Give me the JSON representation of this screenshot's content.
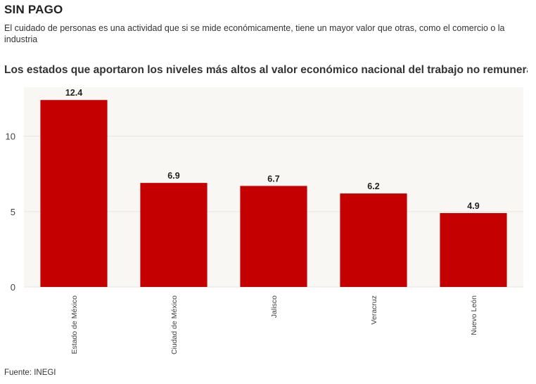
{
  "header": {
    "title": "SIN PAGO",
    "subtitle": "El cuidado de personas es una actividad que si se mide económicamente, tiene un mayor valor que otras, como el comercio o la industria"
  },
  "chart_heading": "Los estados que aportaron los niveles más altos al valor económico nacional del trabajo no remunerado",
  "footer": {
    "source": "Fuente: INEGI"
  },
  "colors": {
    "bar": "#c40000",
    "plot_background": "#f8f7f3",
    "grid": "#e6e4dd",
    "text": "#333333"
  },
  "chart_data": {
    "type": "bar",
    "categories": [
      "Estado de México",
      "Ciudad de México",
      "Jalisco",
      "Veracruz",
      "Nuevo León"
    ],
    "values": [
      12.4,
      6.9,
      6.7,
      6.2,
      4.9
    ],
    "data_labels": [
      "12.4",
      "6.9",
      "6.7",
      "6.2",
      "4.9"
    ],
    "yticks": [
      0,
      5,
      10
    ],
    "ylim": [
      0,
      13.25
    ],
    "grid": true,
    "xlabel": "",
    "ylabel": ""
  }
}
